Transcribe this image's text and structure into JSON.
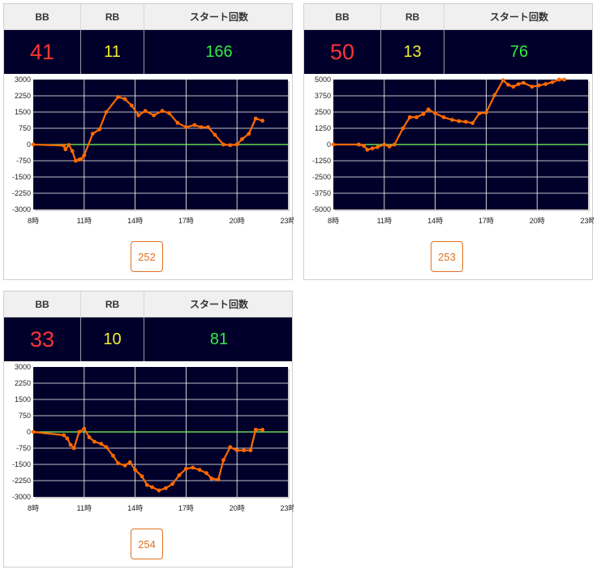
{
  "header": {
    "bb": "BB",
    "rb": "RB",
    "start": "スタート回数"
  },
  "cards": [
    {
      "bb": "41",
      "rb": "11",
      "start": "166",
      "button": "252"
    },
    {
      "bb": "50",
      "rb": "13",
      "start": "76",
      "button": "253"
    },
    {
      "bb": "33",
      "rb": "10",
      "start": "81",
      "button": "254"
    }
  ],
  "colors": {
    "line": "#ff6a00",
    "zero_line": "#7cff5e",
    "plot_bg": "#00002b",
    "grid": "#ffffff",
    "bb": "#ff3535",
    "rb": "#f2ef2a",
    "start": "#30ee40"
  },
  "chart_data": [
    {
      "type": "line",
      "x_ticks": [
        "8時",
        "11時",
        "14時",
        "17時",
        "20時",
        "23時"
      ],
      "x_range": [
        8,
        23
      ],
      "ylim": [
        -3000,
        3000
      ],
      "y_ticks": [
        "3000",
        "2250",
        "1500",
        "750",
        "0",
        "-750",
        "-1500",
        "-2250",
        "-3000"
      ],
      "grid": true,
      "x": [
        8.0,
        9.8,
        9.9,
        10.1,
        10.3,
        10.5,
        10.7,
        10.8,
        11.0,
        11.5,
        11.9,
        12.3,
        13.0,
        13.4,
        13.8,
        14.2,
        14.6,
        15.1,
        15.6,
        16.0,
        16.5,
        17.0,
        17.5,
        17.9,
        18.3,
        18.7,
        19.2,
        19.6,
        20.0,
        20.3,
        20.7,
        21.1,
        21.5
      ],
      "y": [
        0,
        -50,
        -220,
        -20,
        -300,
        -750,
        -700,
        -680,
        -500,
        500,
        700,
        1500,
        2200,
        2100,
        1800,
        1350,
        1550,
        1350,
        1550,
        1450,
        1000,
        800,
        900,
        800,
        800,
        450,
        0,
        -30,
        0,
        250,
        500,
        1200,
        1100
      ]
    },
    {
      "type": "line",
      "x_ticks": [
        "8時",
        "11時",
        "14時",
        "17時",
        "20時",
        "23時"
      ],
      "x_range": [
        8,
        23
      ],
      "ylim": [
        -5000,
        5000
      ],
      "y_ticks": [
        "5000",
        "3750",
        "2500",
        "1250",
        "0",
        "-1250",
        "-2500",
        "-3750",
        "-5000"
      ],
      "grid": true,
      "x": [
        8.0,
        9.5,
        9.8,
        10.0,
        10.3,
        10.6,
        11.0,
        11.3,
        11.6,
        12.1,
        12.5,
        12.9,
        13.3,
        13.6,
        14.0,
        14.5,
        15.0,
        15.4,
        15.8,
        16.2,
        16.6,
        17.0,
        17.5,
        18.0,
        18.3,
        18.6,
        18.9,
        19.2,
        19.7,
        20.1,
        20.5,
        20.9,
        21.3,
        21.6
      ],
      "y": [
        0,
        0,
        -100,
        -400,
        -300,
        -200,
        0,
        -150,
        0,
        1250,
        2100,
        2100,
        2350,
        2700,
        2400,
        2100,
        1900,
        1800,
        1750,
        1650,
        2400,
        2450,
        3800,
        4950,
        4600,
        4450,
        4650,
        4750,
        4450,
        4550,
        4650,
        4800,
        5000,
        5000
      ]
    },
    {
      "type": "line",
      "x_ticks": [
        "8時",
        "11時",
        "14時",
        "17時",
        "20時",
        "23時"
      ],
      "x_range": [
        8,
        23
      ],
      "ylim": [
        -3000,
        3000
      ],
      "y_ticks": [
        "3000",
        "2250",
        "1500",
        "750",
        "0",
        "-750",
        "-1500",
        "-2250",
        "-3000"
      ],
      "grid": true,
      "x": [
        8.0,
        9.8,
        10.0,
        10.2,
        10.4,
        10.7,
        11.0,
        11.3,
        11.6,
        12.0,
        12.3,
        12.7,
        13.0,
        13.4,
        13.7,
        14.0,
        14.4,
        14.7,
        15.0,
        15.4,
        15.8,
        16.2,
        16.6,
        17.0,
        17.4,
        17.8,
        18.2,
        18.5,
        18.9,
        19.2,
        19.6,
        20.0,
        20.4,
        20.8,
        21.1,
        21.5
      ],
      "y": [
        0,
        -150,
        -300,
        -600,
        -750,
        0,
        150,
        -250,
        -450,
        -550,
        -700,
        -1100,
        -1450,
        -1550,
        -1400,
        -1750,
        -2050,
        -2450,
        -2550,
        -2700,
        -2600,
        -2400,
        -2000,
        -1700,
        -1650,
        -1750,
        -1900,
        -2150,
        -2200,
        -1300,
        -700,
        -850,
        -850,
        -850,
        100,
        100
      ]
    }
  ]
}
